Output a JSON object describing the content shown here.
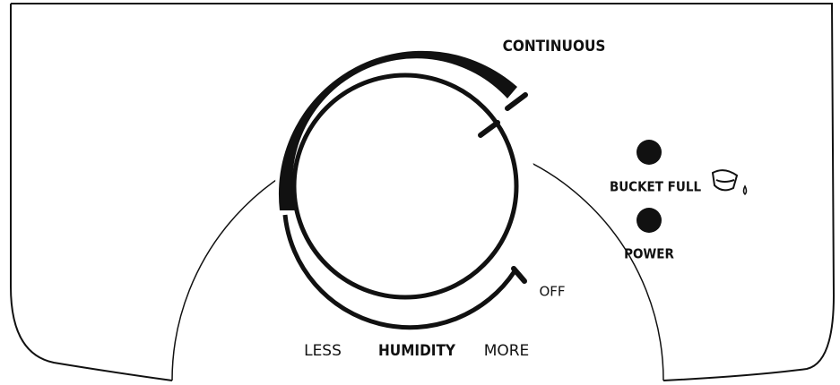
{
  "dial": {
    "top_label": "CONTINUOUS",
    "off_label": "OFF",
    "scale": {
      "less": "LESS",
      "title": "HUMIDITY",
      "more": "MORE"
    }
  },
  "indicators": [
    {
      "label": "BUCKET FULL"
    },
    {
      "label": "POWER"
    }
  ]
}
